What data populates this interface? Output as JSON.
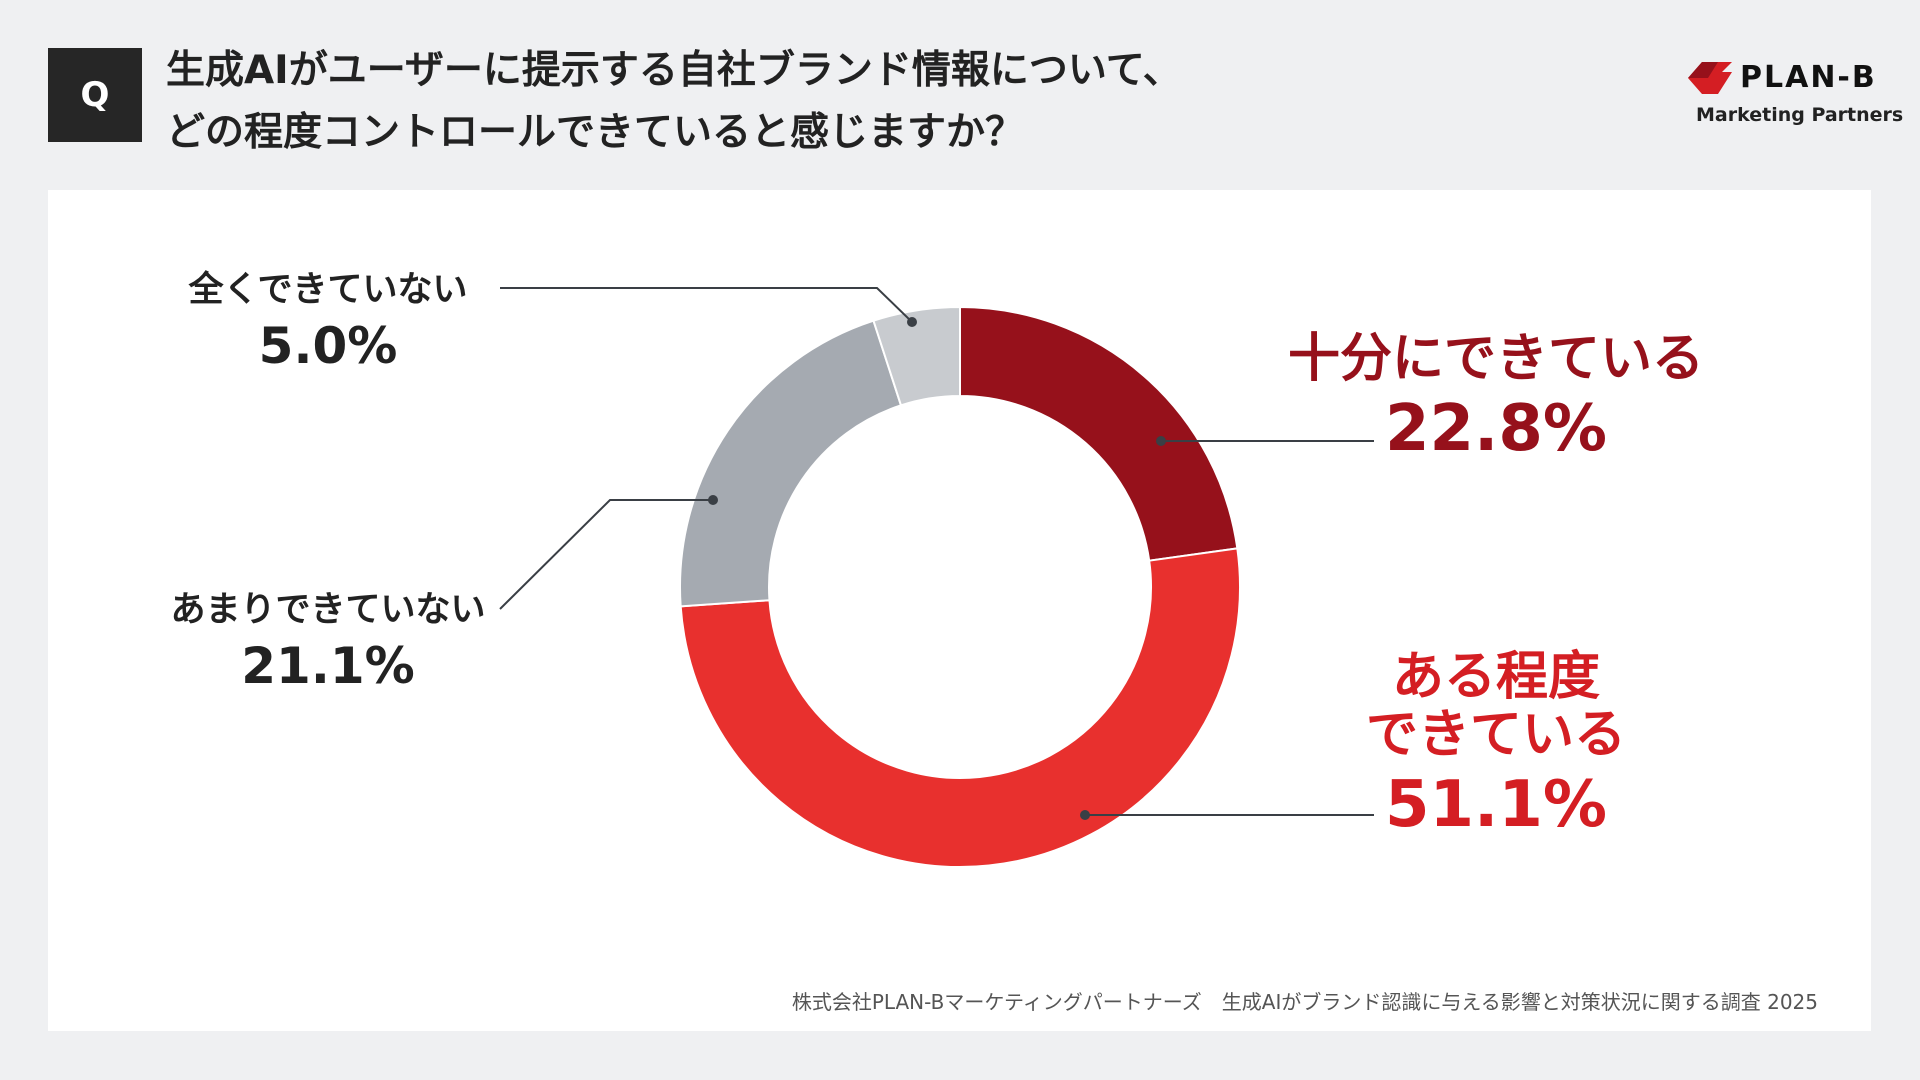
{
  "header": {
    "q_label": "Q",
    "title_line1": "生成AIがユーザーに提示する自社ブランド情報について、",
    "title_line2": "どの程度コントロールできていると感じますか？"
  },
  "logo": {
    "brand": "PLAN-B",
    "sub": "Marketing Partners",
    "color": "#d41e23"
  },
  "footer": {
    "source": "株式会社PLAN-Bマーケティングパートナーズ　生成AIがブランド認識に与える影響と対策状況に関する調査 2025"
  },
  "chart_data": {
    "type": "pie",
    "donut": true,
    "categories": [
      "十分にできている",
      "ある程度できている",
      "あまりできていない",
      "全くできていない"
    ],
    "label_lines": [
      [
        "十分にできている"
      ],
      [
        "ある程度",
        "できている"
      ],
      [
        "あまりできていない"
      ],
      [
        "全くできていない"
      ]
    ],
    "values": [
      22.8,
      51.1,
      21.1,
      5.0
    ],
    "value_labels": [
      "22.8%",
      "51.1%",
      "21.1%",
      "5.0%"
    ],
    "colors": [
      "#96111b",
      "#e8302e",
      "#a5aab1",
      "#c8cbcf"
    ],
    "label_colors": [
      "#96111b",
      "#d41e23",
      "#222222",
      "#222222"
    ],
    "start": "top",
    "direction": "clockwise"
  }
}
